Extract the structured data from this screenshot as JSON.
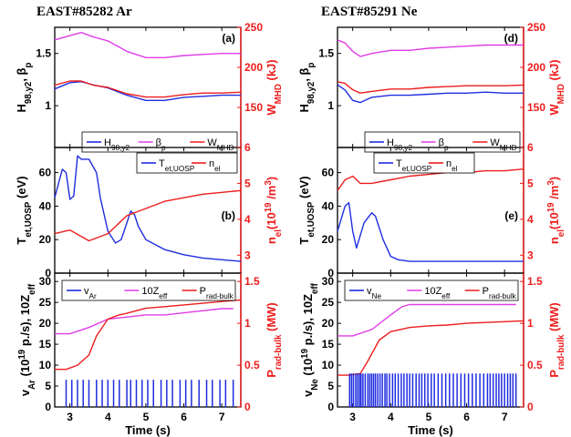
{
  "figure": {
    "left_title": "EAST#85282 Ar",
    "right_title": "EAST#85291 Ne",
    "x_label": "Time (s)",
    "x_range": [
      2.6,
      7.5
    ],
    "x_ticks": [
      3,
      4,
      5,
      6,
      7
    ]
  },
  "colors": {
    "blue": "#1f2de0",
    "red": "#ee1c1c",
    "magenta": "#e03ce8",
    "axis_black": "#000000",
    "right_axis_red": "#ee1c1c"
  },
  "chart_data": [
    {
      "id": "a",
      "type": "line",
      "panel_label": "(a)",
      "title": "EAST#85282 Ar",
      "ylabel_left": "H98,y2, βp",
      "ylabel_right": "WMHD (kJ)",
      "ylim_left": [
        0.6,
        1.75
      ],
      "yticks_left": [
        1,
        1.5
      ],
      "ylim_right": [
        100,
        250
      ],
      "yticks_right": [
        150,
        200,
        250
      ],
      "legend": [
        "H98,y2",
        "βp",
        "WMHD"
      ],
      "series": [
        {
          "name": "H98,y2",
          "axis": "left",
          "color": "blue",
          "x": [
            2.6,
            3.0,
            3.3,
            3.6,
            4.0,
            4.5,
            5.0,
            5.5,
            6.0,
            6.5,
            7.0,
            7.5
          ],
          "y": [
            1.16,
            1.22,
            1.23,
            1.2,
            1.17,
            1.1,
            1.05,
            1.05,
            1.08,
            1.09,
            1.1,
            1.1
          ]
        },
        {
          "name": "βp",
          "axis": "left",
          "color": "magenta",
          "x": [
            2.6,
            3.0,
            3.3,
            3.6,
            4.0,
            4.5,
            5.0,
            5.5,
            6.0,
            6.5,
            7.0,
            7.5
          ],
          "y": [
            1.63,
            1.67,
            1.7,
            1.66,
            1.62,
            1.52,
            1.46,
            1.46,
            1.48,
            1.49,
            1.5,
            1.5
          ]
        },
        {
          "name": "WMHD",
          "axis": "right",
          "color": "red",
          "x": [
            2.6,
            3.0,
            3.3,
            3.6,
            4.0,
            4.5,
            5.0,
            5.5,
            6.0,
            6.5,
            7.0,
            7.5
          ],
          "y": [
            178,
            183,
            183,
            178,
            175,
            167,
            163,
            163,
            166,
            168,
            168,
            169
          ]
        }
      ]
    },
    {
      "id": "b",
      "type": "line",
      "panel_label": "(b)",
      "ylabel_left": "Tet,UOSP (eV)",
      "ylabel_right": "nel(10^19 /m^3)",
      "ylim_left": [
        0,
        75
      ],
      "yticks_left": [
        0,
        20,
        40,
        60
      ],
      "ylim_right": [
        2.5,
        6
      ],
      "yticks_right": [
        3,
        4,
        5,
        6
      ],
      "legend": [
        "Tet,UOSP",
        "nel"
      ],
      "series": [
        {
          "name": "Tet,UOSP",
          "axis": "left",
          "color": "blue",
          "x": [
            2.6,
            2.8,
            2.9,
            3.0,
            3.1,
            3.2,
            3.3,
            3.5,
            3.7,
            3.8,
            4.0,
            4.2,
            4.35,
            4.5,
            4.6,
            4.7,
            4.8,
            5.0,
            5.5,
            6.0,
            6.5,
            7.0,
            7.5
          ],
          "y": [
            45,
            62,
            60,
            44,
            46,
            70,
            68,
            68,
            60,
            45,
            25,
            18,
            20,
            30,
            37,
            35,
            28,
            20,
            14,
            11,
            9,
            8,
            7
          ]
        },
        {
          "name": "nel",
          "axis": "right",
          "color": "red",
          "x": [
            2.6,
            3.0,
            3.5,
            4.0,
            4.5,
            5.0,
            5.5,
            6.0,
            6.5,
            7.0,
            7.5
          ],
          "y": [
            3.6,
            3.7,
            3.4,
            3.6,
            4.1,
            4.3,
            4.5,
            4.6,
            4.7,
            4.75,
            4.8
          ]
        }
      ]
    },
    {
      "id": "c",
      "type": "line",
      "panel_label": "(c)",
      "ylabel_left": "vAr (10^19 p./s), 10Zeff",
      "ylabel_right": "Prad-bulk (MW)",
      "xlabel": "Time (s)",
      "ylim_left": [
        0,
        32
      ],
      "yticks_left": [
        0,
        5,
        10,
        15,
        20,
        25,
        30
      ],
      "ylim_right": [
        0,
        1.6
      ],
      "yticks_right": [
        0,
        0.5,
        1,
        1.5
      ],
      "legend": [
        "vAr",
        "10Zeff",
        "Prad-bulk"
      ],
      "series": [
        {
          "name": "10Zeff",
          "axis": "left",
          "color": "magenta",
          "x": [
            2.6,
            3.0,
            3.5,
            4.0,
            4.5,
            5.0,
            5.5,
            6.0,
            6.5,
            7.0,
            7.3
          ],
          "y": [
            17.5,
            17.5,
            19,
            21,
            21.5,
            22,
            22,
            22.5,
            23,
            23.5,
            23.5
          ]
        },
        {
          "name": "Prad-bulk",
          "axis": "right",
          "color": "red",
          "x": [
            2.6,
            2.9,
            3.2,
            3.5,
            3.7,
            4.0,
            4.3,
            4.5,
            5.0,
            5.5,
            6.0,
            6.5,
            7.0,
            7.5
          ],
          "y": [
            0.45,
            0.45,
            0.5,
            0.62,
            0.85,
            1.05,
            1.1,
            1.12,
            1.18,
            1.2,
            1.22,
            1.24,
            1.26,
            1.28
          ]
        },
        {
          "name": "vAr",
          "axis": "left",
          "color": "blue",
          "style": "pulses",
          "pulse_height": 6.5,
          "x": [
            2.9,
            3.05,
            3.2,
            3.35,
            3.5,
            3.7,
            3.85,
            4.0,
            4.15,
            4.3,
            4.5,
            4.6,
            4.75,
            4.9,
            5.05,
            5.2,
            5.4,
            5.55,
            5.7,
            5.9,
            6.05,
            6.2,
            6.4,
            6.6,
            6.75,
            6.95,
            7.1,
            7.3
          ]
        }
      ]
    },
    {
      "id": "d",
      "type": "line",
      "panel_label": "(d)",
      "title": "EAST#85291 Ne",
      "ylabel_left": "H98,y2, βp",
      "ylabel_right": "WMHD (kJ)",
      "ylim_left": [
        0.6,
        1.75
      ],
      "yticks_left": [
        1,
        1.5
      ],
      "ylim_right": [
        100,
        250
      ],
      "yticks_right": [
        150,
        200,
        250
      ],
      "legend": [
        "H98,y2",
        "βp",
        "WMHD"
      ],
      "series": [
        {
          "name": "H98,y2",
          "axis": "left",
          "color": "blue",
          "x": [
            2.6,
            2.8,
            3.0,
            3.2,
            3.5,
            4.0,
            4.5,
            5.0,
            5.5,
            6.0,
            6.5,
            7.0,
            7.5
          ],
          "y": [
            1.2,
            1.15,
            1.05,
            1.03,
            1.08,
            1.1,
            1.1,
            1.11,
            1.12,
            1.12,
            1.13,
            1.12,
            1.12
          ]
        },
        {
          "name": "βp",
          "axis": "left",
          "color": "magenta",
          "x": [
            2.6,
            2.8,
            3.0,
            3.2,
            3.5,
            4.0,
            4.5,
            5.0,
            5.5,
            6.0,
            6.5,
            7.0,
            7.5
          ],
          "y": [
            1.63,
            1.6,
            1.52,
            1.47,
            1.5,
            1.53,
            1.53,
            1.55,
            1.56,
            1.57,
            1.58,
            1.58,
            1.58
          ]
        },
        {
          "name": "WMHD",
          "axis": "right",
          "color": "red",
          "x": [
            2.6,
            2.8,
            3.0,
            3.2,
            3.5,
            4.0,
            4.5,
            5.0,
            5.5,
            6.0,
            6.5,
            7.0,
            7.5
          ],
          "y": [
            182,
            180,
            172,
            168,
            170,
            173,
            173,
            175,
            176,
            177,
            177,
            177,
            178
          ]
        }
      ]
    },
    {
      "id": "e",
      "type": "line",
      "panel_label": "(e)",
      "ylabel_left": "Tet,UOSP (eV)",
      "ylabel_right": "nel(10^19 /m^3)",
      "ylim_left": [
        0,
        75
      ],
      "yticks_left": [
        0,
        20,
        40,
        60
      ],
      "ylim_right": [
        2.5,
        6
      ],
      "yticks_right": [
        3,
        4,
        5,
        6
      ],
      "legend": [
        "Tet,UOSP",
        "nel"
      ],
      "series": [
        {
          "name": "Tet,UOSP",
          "axis": "left",
          "color": "blue",
          "x": [
            2.6,
            2.8,
            2.9,
            3.0,
            3.1,
            3.3,
            3.5,
            3.6,
            3.8,
            4.0,
            4.2,
            4.5,
            5.0,
            5.5,
            6.0,
            6.5,
            7.0,
            7.5
          ],
          "y": [
            25,
            40,
            42,
            25,
            15,
            30,
            36,
            34,
            20,
            10,
            8,
            7,
            7,
            7,
            7,
            7,
            7,
            7
          ]
        },
        {
          "name": "nel",
          "axis": "right",
          "color": "red",
          "x": [
            2.6,
            2.8,
            3.0,
            3.2,
            3.5,
            4.0,
            4.5,
            5.0,
            5.5,
            6.0,
            6.5,
            7.0,
            7.5
          ],
          "y": [
            4.8,
            5.1,
            5.2,
            5.0,
            5.0,
            5.1,
            5.2,
            5.25,
            5.3,
            5.3,
            5.35,
            5.35,
            5.4
          ]
        }
      ]
    },
    {
      "id": "f",
      "type": "line",
      "panel_label": "(f)",
      "ylabel_left": "vNe (10^19 p./s), 10Zeff",
      "ylabel_right": "Prad-bulk (MW)",
      "xlabel": "Time (s)",
      "ylim_left": [
        0,
        32
      ],
      "yticks_left": [
        0,
        5,
        10,
        15,
        20,
        25,
        30
      ],
      "ylim_right": [
        0,
        1.6
      ],
      "yticks_right": [
        0,
        0.5,
        1,
        1.5
      ],
      "legend": [
        "vNe",
        "10Zeff",
        "Prad-bulk"
      ],
      "series": [
        {
          "name": "10Zeff",
          "axis": "left",
          "color": "magenta",
          "x": [
            2.6,
            3.0,
            3.5,
            4.0,
            4.3,
            4.5,
            5.0,
            5.5,
            6.0,
            6.5,
            7.0,
            7.3
          ],
          "y": [
            17,
            17,
            18.5,
            22,
            24,
            24.5,
            24.5,
            24.5,
            24.5,
            24.5,
            24.5,
            24.5
          ]
        },
        {
          "name": "Prad-bulk",
          "axis": "right",
          "color": "red",
          "x": [
            2.6,
            2.9,
            3.2,
            3.4,
            3.7,
            4.0,
            4.5,
            5.0,
            5.5,
            6.0,
            6.5,
            7.0,
            7.5
          ],
          "y": [
            0.38,
            0.38,
            0.4,
            0.55,
            0.8,
            0.9,
            0.95,
            0.97,
            0.98,
            1.0,
            1.01,
            1.02,
            1.03
          ]
        },
        {
          "name": "vNe",
          "axis": "left",
          "color": "blue",
          "style": "pulses",
          "pulse_height": 8,
          "x": [
            2.92,
            2.97,
            3.02,
            3.08,
            3.13,
            3.18,
            3.22,
            3.27,
            3.33,
            3.4,
            3.45,
            3.5,
            3.55,
            3.6,
            3.66,
            3.72,
            3.78,
            3.85,
            3.9,
            3.97,
            4.05,
            4.12,
            4.2,
            4.28,
            4.35,
            4.43,
            4.5,
            4.58,
            4.67,
            4.75,
            4.82,
            4.9,
            4.98,
            5.07,
            5.15,
            5.25,
            5.35,
            5.45,
            5.55,
            5.65,
            5.75,
            5.85,
            5.95,
            6.05,
            6.15,
            6.25,
            6.35,
            6.45,
            6.55,
            6.62,
            6.7,
            6.78,
            6.85,
            6.92,
            7.0,
            7.08,
            7.15,
            7.22,
            7.3
          ]
        }
      ]
    }
  ]
}
